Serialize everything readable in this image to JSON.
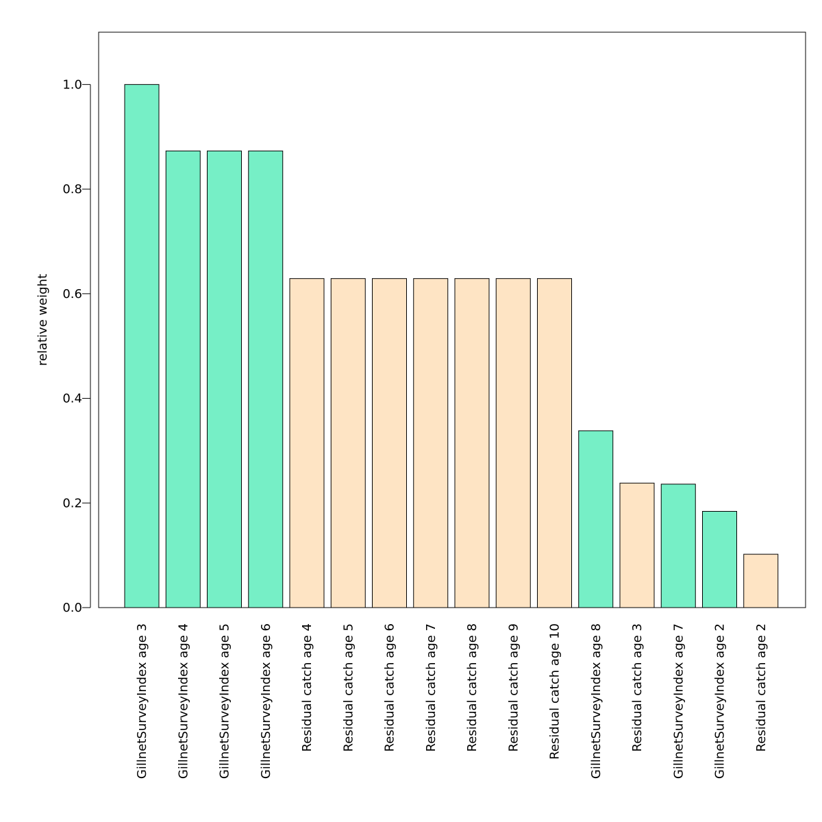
{
  "chart_data": {
    "type": "bar",
    "title": "",
    "xlabel": "",
    "ylabel": "relative weight",
    "ylim": [
      0,
      1.1
    ],
    "yticks": [
      0.0,
      0.2,
      0.4,
      0.6,
      0.8,
      1.0
    ],
    "ytick_labels": [
      "0.0",
      "0.2",
      "0.4",
      "0.6",
      "0.8",
      "1.0"
    ],
    "grid": false,
    "legend": "none",
    "colors": {
      "GillnetSurveyIndex": "#76efc6",
      "Residual catch": "#fee4c4"
    },
    "categories": [
      "GillnetSurveyIndex age 3",
      "GillnetSurveyIndex age 4",
      "GillnetSurveyIndex age 5",
      "GillnetSurveyIndex age 6",
      "Residual catch age 4",
      "Residual catch age 5",
      "Residual catch age 6",
      "Residual catch age 7",
      "Residual catch age 8",
      "Residual catch age 9",
      "Residual catch age 10",
      "GillnetSurveyIndex age 8",
      "Residual catch age 3",
      "GillnetSurveyIndex age 7",
      "GillnetSurveyIndex age 2",
      "Residual catch age 2"
    ],
    "groups": [
      "GillnetSurveyIndex",
      "GillnetSurveyIndex",
      "GillnetSurveyIndex",
      "GillnetSurveyIndex",
      "Residual catch",
      "Residual catch",
      "Residual catch",
      "Residual catch",
      "Residual catch",
      "Residual catch",
      "Residual catch",
      "GillnetSurveyIndex",
      "Residual catch",
      "GillnetSurveyIndex",
      "GillnetSurveyIndex",
      "Residual catch"
    ],
    "values": [
      1.0,
      0.873,
      0.873,
      0.873,
      0.629,
      0.629,
      0.629,
      0.629,
      0.629,
      0.629,
      0.629,
      0.338,
      0.238,
      0.236,
      0.184,
      0.102
    ]
  }
}
